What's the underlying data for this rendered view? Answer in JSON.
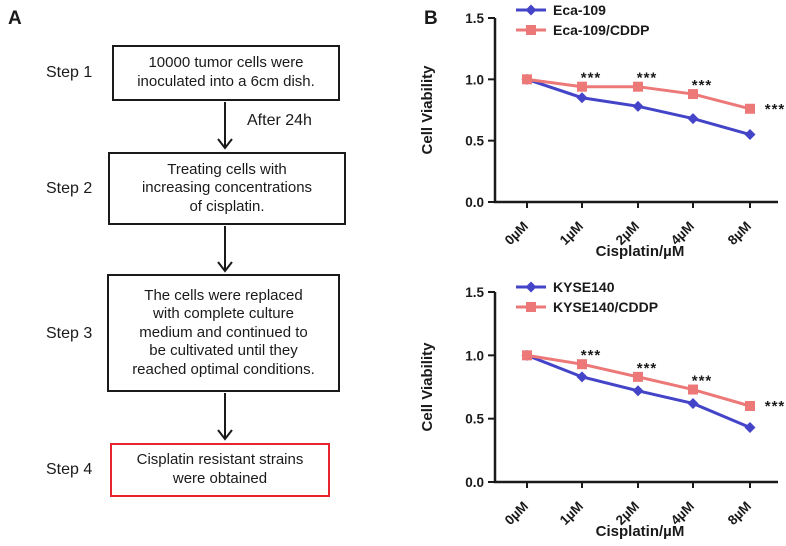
{
  "figure": {
    "panelA": {
      "label": "A",
      "arrow_label": "After 24h",
      "steps": [
        {
          "label": "Step 1",
          "text": "10000 tumor cells were\ninoculated into a 6cm dish."
        },
        {
          "label": "Step 2",
          "text": "Treating cells with\nincreasing concentrations\nof cisplatin."
        },
        {
          "label": "Step 3",
          "text": "The cells were replaced\nwith complete culture\nmedium and continued to\nbe cultivated until they\nreached optimal conditions."
        },
        {
          "label": "Step 4",
          "text": "Cisplatin resistant strains\nwere obtained"
        }
      ]
    },
    "panelB": {
      "label": "B"
    }
  },
  "colors": {
    "series_blue": "#4444c8",
    "series_red": "#ec7878",
    "box_border_black": "#1a1a1a",
    "box_border_red": "#e8242c",
    "axis_black": "#1a1a1a"
  },
  "chart_data": [
    {
      "type": "line",
      "title": "",
      "categories": [
        "0µM",
        "1µM",
        "2µM",
        "4µM",
        "8µM"
      ],
      "xlabel": "Cisplatin/µM",
      "ylabel": "Cell Viability",
      "ylim": [
        0,
        1.5
      ],
      "yticks": [
        "0.0",
        "0.5",
        "1.0",
        "1.5"
      ],
      "grid": false,
      "legend_position": "top-left",
      "series": [
        {
          "name": "Eca-109",
          "color": "#4444c8",
          "marker": "diamond",
          "values": [
            1.0,
            0.85,
            0.78,
            0.68,
            0.55
          ]
        },
        {
          "name": "Eca-109/CDDP",
          "color": "#ec7878",
          "marker": "square",
          "values": [
            1.0,
            0.94,
            0.94,
            0.88,
            0.76
          ]
        }
      ],
      "annotations": [
        {
          "series": 1,
          "index": 1,
          "text": "***"
        },
        {
          "series": 1,
          "index": 2,
          "text": "***"
        },
        {
          "series": 1,
          "index": 3,
          "text": "***"
        },
        {
          "series": 1,
          "index": 4,
          "text": "***",
          "side": true
        }
      ]
    },
    {
      "type": "line",
      "title": "",
      "categories": [
        "0µM",
        "1µM",
        "2µM",
        "4µM",
        "8µM"
      ],
      "xlabel": "Cisplatin/µM",
      "ylabel": "Cell Viability",
      "ylim": [
        0,
        1.5
      ],
      "yticks": [
        "0.0",
        "0.5",
        "1.0",
        "1.5"
      ],
      "grid": false,
      "legend_position": "top-left",
      "series": [
        {
          "name": "KYSE140",
          "color": "#4444c8",
          "marker": "diamond",
          "values": [
            1.0,
            0.83,
            0.72,
            0.62,
            0.43
          ]
        },
        {
          "name": "KYSE140/CDDP",
          "color": "#ec7878",
          "marker": "square",
          "values": [
            1.0,
            0.93,
            0.83,
            0.73,
            0.6
          ]
        }
      ],
      "annotations": [
        {
          "series": 1,
          "index": 1,
          "text": "***"
        },
        {
          "series": 1,
          "index": 2,
          "text": "***"
        },
        {
          "series": 1,
          "index": 3,
          "text": "***"
        },
        {
          "series": 1,
          "index": 4,
          "text": "***",
          "side": true
        }
      ]
    }
  ]
}
